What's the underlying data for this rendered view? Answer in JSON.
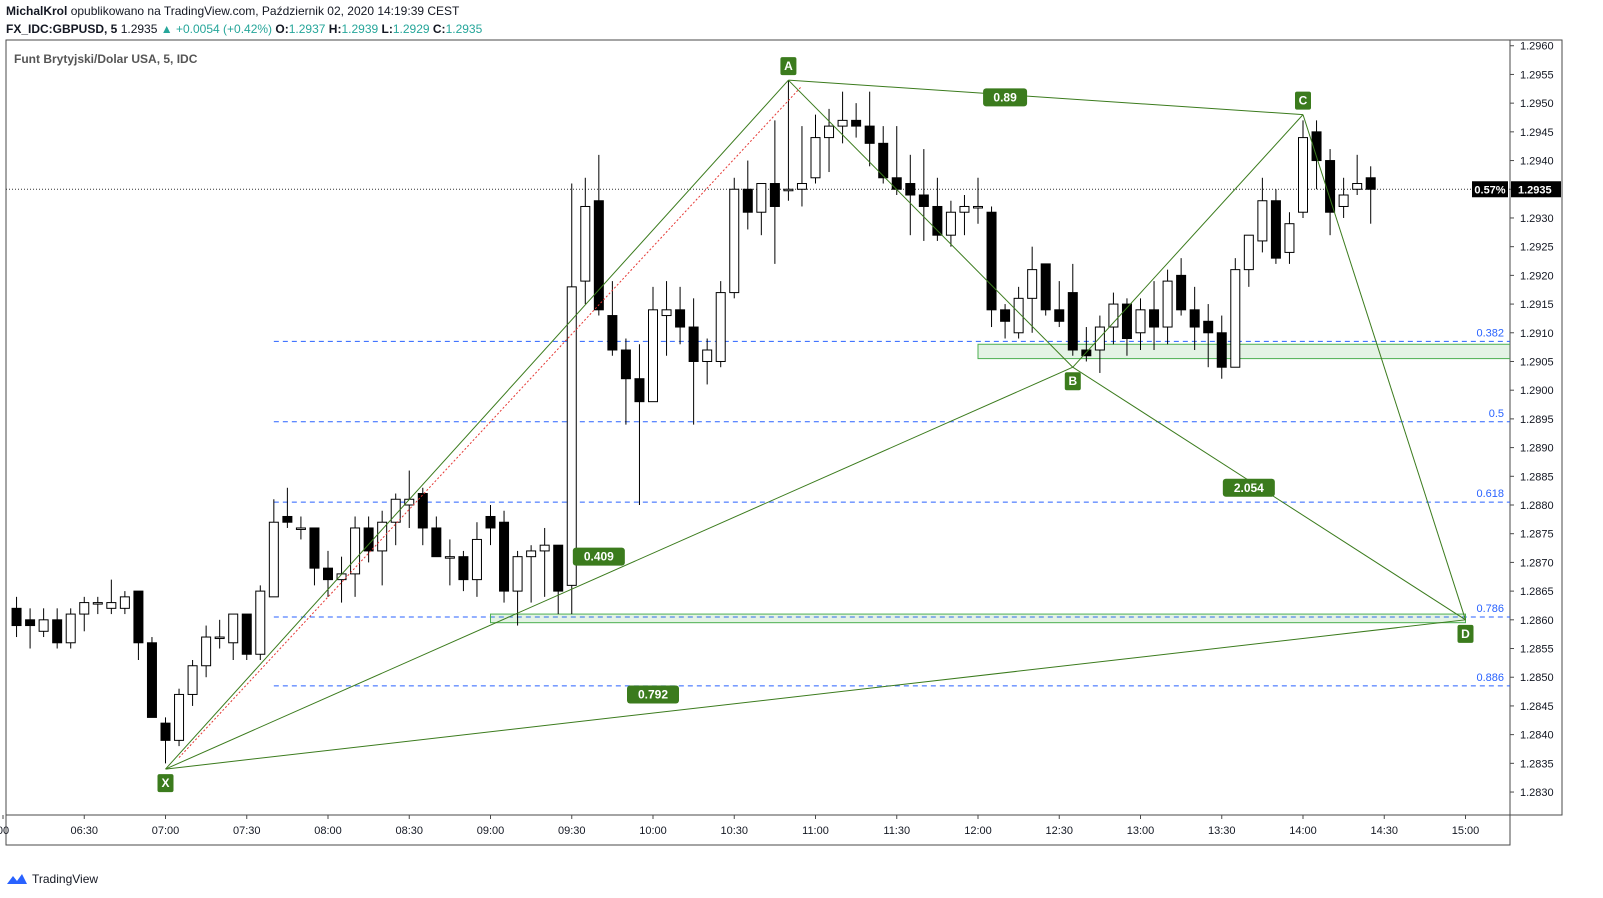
{
  "header": {
    "author": "MichalKrol",
    "published_text": "opublikowano na TradingView.com, Październik 02, 2020 14:19:39 CEST",
    "symbol_line": "FX_IDC:GBPUSD, 5",
    "last_price": "1.2935",
    "change": "+0.0054 (+0.42%)",
    "o_label": "O:",
    "o_value": "1.2937",
    "h_label": "H:",
    "h_value": "1.2939",
    "l_label": "L:",
    "l_value": "1.2929",
    "c_label": "C:",
    "c_value": "1.2935"
  },
  "footer": {
    "brand": "TradingView"
  },
  "chart_data": {
    "type": "candlestick",
    "title": "Funt Brytyjski/Dolar USA, 5, IDC",
    "ylim": [
      1.2826,
      1.2961
    ],
    "y_ticks": [
      "1.2960",
      "1.2955",
      "1.2950",
      "1.2945",
      "1.2940",
      "1.2935",
      "1.2930",
      "1.2925",
      "1.2920",
      "1.2915",
      "1.2910",
      "1.2905",
      "1.2900",
      "1.2895",
      "1.2890",
      "1.2885",
      "1.2880",
      "1.2875",
      "1.2870",
      "1.2865",
      "1.2860",
      "1.2855",
      "1.2850",
      "1.2845",
      "1.2840",
      "1.2835",
      "1.2830"
    ],
    "x_ticks": [
      {
        "label": "00",
        "t": "06:00"
      },
      {
        "label": "06:30",
        "t": "06:30"
      },
      {
        "label": "07:00",
        "t": "07:00"
      },
      {
        "label": "07:30",
        "t": "07:30"
      },
      {
        "label": "08:00",
        "t": "08:00"
      },
      {
        "label": "08:30",
        "t": "08:30"
      },
      {
        "label": "09:00",
        "t": "09:00"
      },
      {
        "label": "09:30",
        "t": "09:30"
      },
      {
        "label": "10:00",
        "t": "10:00"
      },
      {
        "label": "10:30",
        "t": "10:30"
      },
      {
        "label": "11:00",
        "t": "11:00"
      },
      {
        "label": "11:30",
        "t": "11:30"
      },
      {
        "label": "12:00",
        "t": "12:00"
      },
      {
        "label": "12:30",
        "t": "12:30"
      },
      {
        "label": "13:00",
        "t": "13:00"
      },
      {
        "label": "13:30",
        "t": "13:30"
      },
      {
        "label": "14:00",
        "t": "14:00"
      },
      {
        "label": "14:30",
        "t": "14:30"
      },
      {
        "label": "15:00",
        "t": "15:00"
      }
    ],
    "candles": [
      {
        "t": "06:05",
        "o": 1.2862,
        "h": 1.2864,
        "l": 1.2857,
        "c": 1.2859
      },
      {
        "t": "06:10",
        "o": 1.286,
        "h": 1.2862,
        "l": 1.2855,
        "c": 1.2859
      },
      {
        "t": "06:15",
        "o": 1.2858,
        "h": 1.2862,
        "l": 1.2857,
        "c": 1.286
      },
      {
        "t": "06:20",
        "o": 1.286,
        "h": 1.2862,
        "l": 1.2855,
        "c": 1.2856
      },
      {
        "t": "06:25",
        "o": 1.2856,
        "h": 1.2862,
        "l": 1.2855,
        "c": 1.2861
      },
      {
        "t": "06:30",
        "o": 1.2861,
        "h": 1.2864,
        "l": 1.2858,
        "c": 1.2863
      },
      {
        "t": "06:35",
        "o": 1.2863,
        "h": 1.2864,
        "l": 1.2861,
        "c": 1.2863
      },
      {
        "t": "06:40",
        "o": 1.2862,
        "h": 1.2867,
        "l": 1.2861,
        "c": 1.2863
      },
      {
        "t": "06:45",
        "o": 1.2862,
        "h": 1.2865,
        "l": 1.2861,
        "c": 1.2864
      },
      {
        "t": "06:50",
        "o": 1.2865,
        "h": 1.2865,
        "l": 1.2853,
        "c": 1.2856
      },
      {
        "t": "06:55",
        "o": 1.2856,
        "h": 1.2857,
        "l": 1.2843,
        "c": 1.2843
      },
      {
        "t": "07:00",
        "o": 1.2842,
        "h": 1.2843,
        "l": 1.2835,
        "c": 1.2839
      },
      {
        "t": "07:05",
        "o": 1.2839,
        "h": 1.2848,
        "l": 1.2838,
        "c": 1.2847
      },
      {
        "t": "07:10",
        "o": 1.2847,
        "h": 1.2853,
        "l": 1.2845,
        "c": 1.2852
      },
      {
        "t": "07:15",
        "o": 1.2852,
        "h": 1.2859,
        "l": 1.285,
        "c": 1.2857
      },
      {
        "t": "07:20",
        "o": 1.2857,
        "h": 1.286,
        "l": 1.2855,
        "c": 1.2857
      },
      {
        "t": "07:25",
        "o": 1.2856,
        "h": 1.2861,
        "l": 1.2853,
        "c": 1.2861
      },
      {
        "t": "07:30",
        "o": 1.2861,
        "h": 1.2861,
        "l": 1.2853,
        "c": 1.2854
      },
      {
        "t": "07:35",
        "o": 1.2854,
        "h": 1.2866,
        "l": 1.2853,
        "c": 1.2865
      },
      {
        "t": "07:40",
        "o": 1.2864,
        "h": 1.2881,
        "l": 1.2864,
        "c": 1.2877
      },
      {
        "t": "07:45",
        "o": 1.2878,
        "h": 1.2883,
        "l": 1.2876,
        "c": 1.2877
      },
      {
        "t": "07:50",
        "o": 1.2876,
        "h": 1.2878,
        "l": 1.2874,
        "c": 1.2876
      },
      {
        "t": "07:55",
        "o": 1.2876,
        "h": 1.2876,
        "l": 1.2866,
        "c": 1.2869
      },
      {
        "t": "08:00",
        "o": 1.2869,
        "h": 1.2872,
        "l": 1.2864,
        "c": 1.2867
      },
      {
        "t": "08:05",
        "o": 1.2867,
        "h": 1.2871,
        "l": 1.2863,
        "c": 1.2868
      },
      {
        "t": "08:10",
        "o": 1.2868,
        "h": 1.2878,
        "l": 1.2864,
        "c": 1.2876
      },
      {
        "t": "08:15",
        "o": 1.2876,
        "h": 1.2878,
        "l": 1.287,
        "c": 1.2872
      },
      {
        "t": "08:20",
        "o": 1.2872,
        "h": 1.2879,
        "l": 1.2866,
        "c": 1.2877
      },
      {
        "t": "08:25",
        "o": 1.2877,
        "h": 1.2882,
        "l": 1.2873,
        "c": 1.2881
      },
      {
        "t": "08:30",
        "o": 1.288,
        "h": 1.2886,
        "l": 1.2876,
        "c": 1.2881
      },
      {
        "t": "08:35",
        "o": 1.2882,
        "h": 1.2883,
        "l": 1.2873,
        "c": 1.2876
      },
      {
        "t": "08:40",
        "o": 1.2876,
        "h": 1.2878,
        "l": 1.2871,
        "c": 1.2871
      },
      {
        "t": "08:45",
        "o": 1.2871,
        "h": 1.2874,
        "l": 1.2866,
        "c": 1.2871
      },
      {
        "t": "08:50",
        "o": 1.2871,
        "h": 1.2872,
        "l": 1.2865,
        "c": 1.2867
      },
      {
        "t": "08:55",
        "o": 1.2867,
        "h": 1.2877,
        "l": 1.2864,
        "c": 1.2874
      },
      {
        "t": "09:00",
        "o": 1.2878,
        "h": 1.288,
        "l": 1.2873,
        "c": 1.2876
      },
      {
        "t": "09:05",
        "o": 1.2877,
        "h": 1.2879,
        "l": 1.2863,
        "c": 1.2865
      },
      {
        "t": "09:10",
        "o": 1.2865,
        "h": 1.2872,
        "l": 1.2859,
        "c": 1.2871
      },
      {
        "t": "09:15",
        "o": 1.2871,
        "h": 1.2873,
        "l": 1.2863,
        "c": 1.2872
      },
      {
        "t": "09:20",
        "o": 1.2872,
        "h": 1.2876,
        "l": 1.2864,
        "c": 1.2873
      },
      {
        "t": "09:25",
        "o": 1.2873,
        "h": 1.2873,
        "l": 1.2861,
        "c": 1.2865
      },
      {
        "t": "09:30",
        "o": 1.2866,
        "h": 1.2936,
        "l": 1.2861,
        "c": 1.2918
      },
      {
        "t": "09:35",
        "o": 1.2919,
        "h": 1.2937,
        "l": 1.2915,
        "c": 1.2932
      },
      {
        "t": "09:40",
        "o": 1.2933,
        "h": 1.2941,
        "l": 1.2913,
        "c": 1.2914
      },
      {
        "t": "09:45",
        "o": 1.2913,
        "h": 1.2919,
        "l": 1.2906,
        "c": 1.2907
      },
      {
        "t": "09:50",
        "o": 1.2907,
        "h": 1.2909,
        "l": 1.2894,
        "c": 1.2902
      },
      {
        "t": "09:55",
        "o": 1.2902,
        "h": 1.2908,
        "l": 1.288,
        "c": 1.2898
      },
      {
        "t": "10:00",
        "o": 1.2898,
        "h": 1.2918,
        "l": 1.2898,
        "c": 1.2914
      },
      {
        "t": "10:05",
        "o": 1.2913,
        "h": 1.2919,
        "l": 1.2906,
        "c": 1.2914
      },
      {
        "t": "10:10",
        "o": 1.2914,
        "h": 1.2918,
        "l": 1.2908,
        "c": 1.2911
      },
      {
        "t": "10:15",
        "o": 1.2911,
        "h": 1.2916,
        "l": 1.2894,
        "c": 1.2905
      },
      {
        "t": "10:20",
        "o": 1.2905,
        "h": 1.2909,
        "l": 1.2901,
        "c": 1.2907
      },
      {
        "t": "10:25",
        "o": 1.2905,
        "h": 1.2919,
        "l": 1.2904,
        "c": 1.2917
      },
      {
        "t": "10:30",
        "o": 1.2917,
        "h": 1.2937,
        "l": 1.2916,
        "c": 1.2935
      },
      {
        "t": "10:35",
        "o": 1.2935,
        "h": 1.294,
        "l": 1.2928,
        "c": 1.2931
      },
      {
        "t": "10:40",
        "o": 1.2931,
        "h": 1.2936,
        "l": 1.2927,
        "c": 1.2936
      },
      {
        "t": "10:45",
        "o": 1.2936,
        "h": 1.2947,
        "l": 1.2922,
        "c": 1.2932
      },
      {
        "t": "10:50",
        "o": 1.2935,
        "h": 1.2954,
        "l": 1.2933,
        "c": 1.2935
      },
      {
        "t": "10:55",
        "o": 1.2935,
        "h": 1.2946,
        "l": 1.2932,
        "c": 1.2936
      },
      {
        "t": "11:00",
        "o": 1.2937,
        "h": 1.2948,
        "l": 1.2936,
        "c": 1.2944
      },
      {
        "t": "11:05",
        "o": 1.2944,
        "h": 1.2949,
        "l": 1.2938,
        "c": 1.2946
      },
      {
        "t": "11:10",
        "o": 1.2946,
        "h": 1.2952,
        "l": 1.2943,
        "c": 1.2947
      },
      {
        "t": "11:15",
        "o": 1.2947,
        "h": 1.295,
        "l": 1.2944,
        "c": 1.2946
      },
      {
        "t": "11:20",
        "o": 1.2946,
        "h": 1.2952,
        "l": 1.2939,
        "c": 1.2943
      },
      {
        "t": "11:25",
        "o": 1.2943,
        "h": 1.2946,
        "l": 1.2936,
        "c": 1.2937
      },
      {
        "t": "11:30",
        "o": 1.2937,
        "h": 1.2946,
        "l": 1.2934,
        "c": 1.2935
      },
      {
        "t": "11:35",
        "o": 1.2936,
        "h": 1.2941,
        "l": 1.2927,
        "c": 1.2934
      },
      {
        "t": "11:40",
        "o": 1.2934,
        "h": 1.2942,
        "l": 1.2926,
        "c": 1.2932
      },
      {
        "t": "11:45",
        "o": 1.2932,
        "h": 1.2937,
        "l": 1.2926,
        "c": 1.2927
      },
      {
        "t": "11:50",
        "o": 1.2927,
        "h": 1.2933,
        "l": 1.2925,
        "c": 1.2931
      },
      {
        "t": "11:55",
        "o": 1.2931,
        "h": 1.2934,
        "l": 1.2927,
        "c": 1.2932
      },
      {
        "t": "12:00",
        "o": 1.2932,
        "h": 1.2937,
        "l": 1.2929,
        "c": 1.2932
      },
      {
        "t": "12:05",
        "o": 1.2931,
        "h": 1.2932,
        "l": 1.2911,
        "c": 1.2914
      },
      {
        "t": "12:10",
        "o": 1.2914,
        "h": 1.2915,
        "l": 1.2909,
        "c": 1.2912
      },
      {
        "t": "12:15",
        "o": 1.291,
        "h": 1.2918,
        "l": 1.2909,
        "c": 1.2916
      },
      {
        "t": "12:20",
        "o": 1.2916,
        "h": 1.2925,
        "l": 1.291,
        "c": 1.2921
      },
      {
        "t": "12:25",
        "o": 1.2922,
        "h": 1.2922,
        "l": 1.2913,
        "c": 1.2914
      },
      {
        "t": "12:30",
        "o": 1.2914,
        "h": 1.2919,
        "l": 1.2911,
        "c": 1.2912
      },
      {
        "t": "12:35",
        "o": 1.2917,
        "h": 1.2922,
        "l": 1.2906,
        "c": 1.2907
      },
      {
        "t": "12:40",
        "o": 1.2907,
        "h": 1.2911,
        "l": 1.2905,
        "c": 1.2906
      },
      {
        "t": "12:45",
        "o": 1.2907,
        "h": 1.2913,
        "l": 1.2903,
        "c": 1.2911
      },
      {
        "t": "12:50",
        "o": 1.2911,
        "h": 1.2917,
        "l": 1.2908,
        "c": 1.2915
      },
      {
        "t": "12:55",
        "o": 1.2915,
        "h": 1.2916,
        "l": 1.2906,
        "c": 1.2909
      },
      {
        "t": "13:00",
        "o": 1.291,
        "h": 1.2916,
        "l": 1.2907,
        "c": 1.2914
      },
      {
        "t": "13:05",
        "o": 1.2914,
        "h": 1.2919,
        "l": 1.2907,
        "c": 1.2911
      },
      {
        "t": "13:10",
        "o": 1.2911,
        "h": 1.2921,
        "l": 1.2908,
        "c": 1.2919
      },
      {
        "t": "13:15",
        "o": 1.292,
        "h": 1.2923,
        "l": 1.2913,
        "c": 1.2914
      },
      {
        "t": "13:20",
        "o": 1.2914,
        "h": 1.2918,
        "l": 1.2907,
        "c": 1.2911
      },
      {
        "t": "13:25",
        "o": 1.2912,
        "h": 1.2915,
        "l": 1.2904,
        "c": 1.291
      },
      {
        "t": "13:30",
        "o": 1.291,
        "h": 1.2913,
        "l": 1.2902,
        "c": 1.2904
      },
      {
        "t": "13:35",
        "o": 1.2904,
        "h": 1.2923,
        "l": 1.2904,
        "c": 1.2921
      },
      {
        "t": "13:40",
        "o": 1.2921,
        "h": 1.2927,
        "l": 1.2918,
        "c": 1.2927
      },
      {
        "t": "13:45",
        "o": 1.2926,
        "h": 1.2937,
        "l": 1.2924,
        "c": 1.2933
      },
      {
        "t": "13:50",
        "o": 1.2933,
        "h": 1.2935,
        "l": 1.2922,
        "c": 1.2923
      },
      {
        "t": "13:55",
        "o": 1.2924,
        "h": 1.2931,
        "l": 1.2922,
        "c": 1.2929
      },
      {
        "t": "14:00",
        "o": 1.2931,
        "h": 1.2947,
        "l": 1.293,
        "c": 1.2944
      },
      {
        "t": "14:05",
        "o": 1.2945,
        "h": 1.2947,
        "l": 1.2935,
        "c": 1.294
      },
      {
        "t": "14:10",
        "o": 1.294,
        "h": 1.2942,
        "l": 1.2927,
        "c": 1.2931
      },
      {
        "t": "14:15",
        "o": 1.2932,
        "h": 1.2937,
        "l": 1.293,
        "c": 1.2934
      },
      {
        "t": "14:20",
        "o": 1.2935,
        "h": 1.2941,
        "l": 1.2934,
        "c": 1.2936
      },
      {
        "t": "14:25",
        "o": 1.2937,
        "h": 1.2939,
        "l": 1.2929,
        "c": 1.2935
      }
    ],
    "candle_colors": {
      "up_fill": "#ffffff",
      "down_fill": "#000000",
      "outline": "#000000"
    },
    "current_price": {
      "value": 1.2935,
      "label": "1.2935",
      "pct_label": "0.57%"
    },
    "fib_levels": [
      {
        "label": "0.382",
        "value": 1.29085
      },
      {
        "label": "0.5",
        "value": 1.28945
      },
      {
        "label": "0.618",
        "value": 1.28805
      },
      {
        "label": "0.786",
        "value": 1.28605
      },
      {
        "label": "0.886",
        "value": 1.28485
      }
    ],
    "fib_start_time": "07:40",
    "pattern": {
      "color": "#3b7b1d",
      "points": [
        {
          "label": "X",
          "t": "07:00",
          "price": 1.2834
        },
        {
          "label": "A",
          "t": "10:50",
          "price": 1.2954
        },
        {
          "label": "B",
          "t": "12:35",
          "price": 1.2904
        },
        {
          "label": "C",
          "t": "14:00",
          "price": 1.2948
        },
        {
          "label": "D",
          "t": "15:00",
          "price": 1.286
        }
      ],
      "ratios": [
        {
          "label": "0.89",
          "t": "12:10",
          "price": 1.2951
        },
        {
          "label": "0.409",
          "t": "09:40",
          "price": 1.2871
        },
        {
          "label": "2.054",
          "t": "13:40",
          "price": 1.2883
        },
        {
          "label": "0.792",
          "t": "10:00",
          "price": 1.2847
        }
      ],
      "zones": [
        {
          "t1": "09:00",
          "t2": "15:00",
          "p1": 1.28595,
          "p2": 1.2861
        },
        {
          "t1": "12:00",
          "t2": "15:25",
          "p1": 1.29055,
          "p2": 1.2908
        }
      ],
      "red_line": {
        "t1": "07:05",
        "p1": 1.2836,
        "t2": "10:55",
        "p2": 1.2953
      }
    },
    "grid": false
  }
}
